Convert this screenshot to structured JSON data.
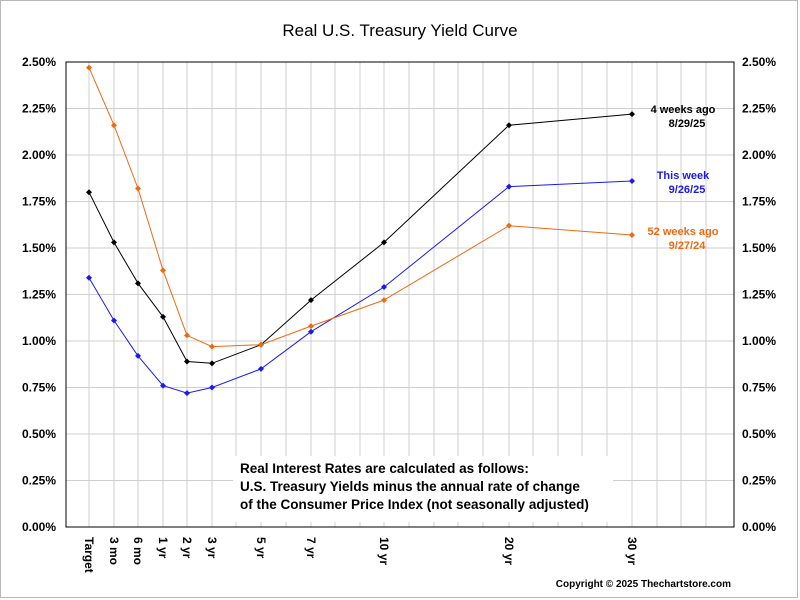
{
  "chart_data": {
    "type": "line",
    "title": "Real U.S. Treasury Yield Curve",
    "categories": [
      "Target",
      "3 mo",
      "6 mo",
      "1 yr",
      "2 yr",
      "3 yr",
      "5 yr",
      "7 yr",
      "10 yr",
      "20 yr",
      "30 yr"
    ],
    "x_years": [
      0,
      0.25,
      0.5,
      1,
      2,
      3,
      5,
      7,
      10,
      20,
      30
    ],
    "ylim": [
      0,
      2.5
    ],
    "yticks": [
      "0.00%",
      "0.25%",
      "0.50%",
      "0.75%",
      "1.00%",
      "1.25%",
      "1.50%",
      "1.75%",
      "2.00%",
      "2.25%",
      "2.50%"
    ],
    "grid": true,
    "series": [
      {
        "name": "4 weeks ago",
        "date": "8/29/25",
        "color": "#000000",
        "values": [
          1.8,
          1.53,
          1.31,
          1.13,
          0.89,
          0.88,
          0.98,
          1.22,
          1.53,
          2.16,
          2.22
        ]
      },
      {
        "name": "This week",
        "date": "9/26/25",
        "color": "#1a1aee",
        "values": [
          1.34,
          1.11,
          0.92,
          0.76,
          0.72,
          0.75,
          0.85,
          1.05,
          1.29,
          1.83,
          1.86
        ]
      },
      {
        "name": "52 weeks ago",
        "date": "9/27/24",
        "color": "#ee6a10",
        "values": [
          2.47,
          2.16,
          1.82,
          1.38,
          1.03,
          0.97,
          0.98,
          1.08,
          1.22,
          1.62,
          1.57
        ]
      }
    ],
    "annotation": [
      "Real Interest Rates are calculated as follows:",
      "U.S. Treasury Yields minus the annual rate of change",
      "of the Consumer Price Index (not seasonally adjusted)"
    ],
    "copyright": "Copyright © 2025 Thechartstore.com"
  }
}
